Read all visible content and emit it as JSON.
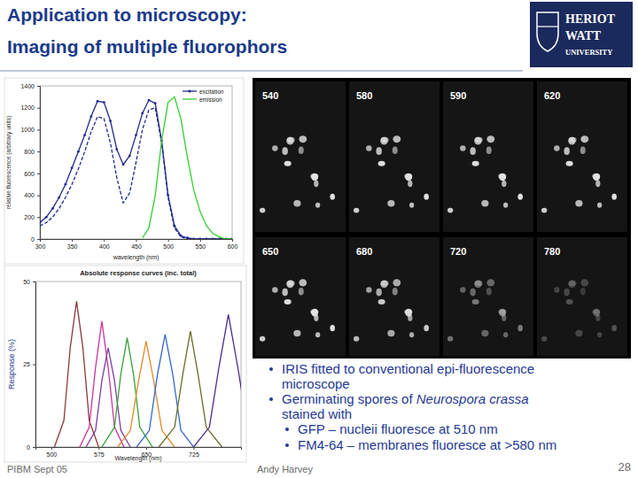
{
  "slide": {
    "title": [
      "Application to microscopy:",
      "Imaging of multiple fluorophors"
    ],
    "logo": [
      "HERIOT",
      "WATT",
      "UNIVERSITY"
    ],
    "image_labels": [
      "540",
      "580",
      "590",
      "620",
      "650",
      "680",
      "720",
      "780"
    ],
    "bullets": [
      {
        "level": 1,
        "lines": [
          [
            {
              "text": "IRIS fitted to conventional epi-fluorescence"
            }
          ],
          [
            {
              "text": "microscope"
            }
          ]
        ]
      },
      {
        "level": 1,
        "lines": [
          [
            {
              "text": "Germinating spores of "
            },
            {
              "text": "Neurospora crassa",
              "italic": true
            }
          ],
          [
            {
              "text": "stained with"
            }
          ]
        ]
      },
      {
        "level": 2,
        "lines": [
          [
            {
              "text": "GFP – nucleii fluoresce at 510 nm"
            }
          ]
        ]
      },
      {
        "level": 2,
        "lines": [
          [
            {
              "text": "FM4-64 – membranes fluoresce at >580 nm"
            }
          ]
        ]
      }
    ],
    "footer": {
      "left": "PIBM Sept 05",
      "center": "Andy Harvey",
      "page": "28"
    }
  },
  "chart_data": [
    {
      "type": "line",
      "x_label": "wavelength (nm)",
      "y_label": "relative fluorescence (arbitrary units)",
      "x": [
        300,
        310,
        320,
        330,
        340,
        350,
        360,
        370,
        380,
        390,
        400,
        410,
        420,
        430,
        440,
        450,
        460,
        470,
        480,
        490,
        500,
        510,
        520,
        530,
        540,
        550,
        560,
        570,
        580,
        590,
        600
      ],
      "xlim": [
        300,
        600
      ],
      "xticks": [
        300,
        350,
        400,
        450,
        500,
        550,
        600
      ],
      "ylim": [
        0,
        1400
      ],
      "yticks": [
        0,
        200,
        400,
        600,
        800,
        1000,
        1200,
        1400
      ],
      "legend": "upper right",
      "series": [
        {
          "name": "excitation",
          "color": "#1f2a8a",
          "marker": "circle",
          "values": [
            150,
            200,
            280,
            380,
            500,
            650,
            800,
            950,
            1120,
            1260,
            1250,
            1080,
            820,
            680,
            760,
            950,
            1150,
            1270,
            1240,
            900,
            400,
            120,
            30,
            10,
            0,
            0,
            0,
            0,
            0,
            0,
            0
          ]
        },
        {
          "color": "#1f2a8a",
          "line_style": "dashed",
          "values": [
            120,
            150,
            200,
            280,
            380,
            500,
            640,
            800,
            980,
            1120,
            1100,
            880,
            560,
            330,
            420,
            700,
            1000,
            1180,
            1200,
            880,
            380,
            100,
            20,
            0,
            0,
            0,
            0,
            0,
            0,
            0,
            0
          ]
        },
        {
          "name": "emission",
          "color": "#33cc33",
          "values": [
            null,
            null,
            null,
            null,
            null,
            null,
            null,
            null,
            null,
            null,
            null,
            null,
            null,
            null,
            null,
            null,
            10,
            100,
            400,
            900,
            1250,
            1300,
            1100,
            750,
            450,
            250,
            120,
            50,
            20,
            0,
            0
          ]
        }
      ]
    },
    {
      "type": "line",
      "title": "Absolute response curves (inc. total)",
      "x_label": "Wavelength (nm)",
      "y_label": "Response (%)",
      "xlim": [
        475,
        800
      ],
      "xticks": [
        500,
        575,
        650,
        725
      ],
      "ylim": [
        0,
        50
      ],
      "yticks": [
        0,
        25,
        50
      ],
      "series": [
        {
          "color": "#8b3a3a",
          "x": [
            505,
            520,
            530,
            540,
            550,
            560,
            575
          ],
          "values": [
            0,
            8,
            30,
            44,
            30,
            8,
            0
          ]
        },
        {
          "color": "#cc3399",
          "x": [
            545,
            560,
            570,
            580,
            590,
            600,
            615
          ],
          "values": [
            0,
            6,
            24,
            38,
            24,
            6,
            0
          ]
        },
        {
          "color": "#7b3fa0",
          "x": [
            555,
            570,
            580,
            590,
            600,
            610,
            625
          ],
          "values": [
            0,
            5,
            20,
            30,
            20,
            5,
            0
          ]
        },
        {
          "color": "#33a033",
          "x": [
            580,
            600,
            610,
            620,
            630,
            640,
            660
          ],
          "values": [
            0,
            6,
            22,
            33,
            22,
            6,
            0
          ]
        },
        {
          "color": "#e08a2a",
          "x": [
            605,
            625,
            638,
            650,
            662,
            675,
            695
          ],
          "values": [
            0,
            5,
            20,
            32,
            20,
            5,
            0
          ]
        },
        {
          "color": "#3366cc",
          "x": [
            635,
            655,
            668,
            680,
            692,
            705,
            725
          ],
          "values": [
            0,
            5,
            22,
            34,
            22,
            5,
            0
          ]
        },
        {
          "color": "#6b6b2a",
          "x": [
            670,
            695,
            708,
            720,
            732,
            745,
            770
          ],
          "values": [
            0,
            6,
            22,
            35,
            22,
            6,
            0
          ]
        },
        {
          "color": "#4b2a8a",
          "x": [
            725,
            750,
            765,
            780,
            795,
            810,
            835
          ],
          "values": [
            0,
            6,
            24,
            40,
            24,
            6,
            0
          ]
        }
      ]
    }
  ]
}
